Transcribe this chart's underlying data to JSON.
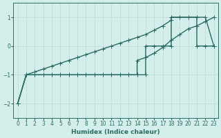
{
  "title": "",
  "xlabel": "Humidex (Indice chaleur)",
  "ylabel": "",
  "bg_color": "#d4eeeb",
  "grid_color": "#c0ddd9",
  "line_color": "#2a6b60",
  "xlim": [
    -0.5,
    23.5
  ],
  "ylim": [
    -2.5,
    1.5
  ],
  "yticks": [
    -2,
    -1,
    0,
    1
  ],
  "xticks": [
    0,
    1,
    2,
    3,
    4,
    5,
    6,
    7,
    8,
    9,
    10,
    11,
    12,
    13,
    14,
    15,
    16,
    17,
    18,
    19,
    20,
    21,
    22,
    23
  ],
  "line1_x": [
    0,
    1,
    2,
    3,
    4,
    5,
    6,
    7,
    8,
    9,
    10,
    11,
    12,
    13,
    14,
    15,
    16,
    17,
    18,
    18,
    19,
    20,
    21,
    21,
    22,
    23
  ],
  "line1_y": [
    -2,
    -1,
    -0.9,
    -0.8,
    -0.7,
    -0.6,
    -0.5,
    -0.4,
    -0.3,
    -0.2,
    -0.1,
    0.0,
    0.1,
    0.2,
    0.3,
    0.4,
    0.55,
    0.7,
    0.9,
    1.0,
    1.0,
    1.0,
    1.0,
    0.0,
    0.0,
    0.0
  ],
  "line2_x": [
    0,
    1,
    2,
    3,
    4,
    5,
    6,
    7,
    8,
    9,
    10,
    11,
    12,
    13,
    14,
    15,
    15,
    16,
    17,
    18,
    18,
    19,
    20,
    21,
    22,
    23
  ],
  "line2_y": [
    -2,
    -1,
    -1,
    -1,
    -1,
    -1,
    -1,
    -1,
    -1,
    -1,
    -1,
    -1,
    -1,
    -1,
    -1,
    -1,
    0,
    0,
    0,
    0,
    1,
    1,
    1,
    1,
    1,
    0
  ],
  "line3_x": [
    0,
    1,
    2,
    3,
    4,
    5,
    6,
    7,
    8,
    9,
    10,
    11,
    12,
    13,
    14,
    14,
    15,
    16,
    17,
    18,
    19,
    20,
    21,
    22,
    23
  ],
  "line3_y": [
    -2,
    -1,
    -1,
    -1,
    -1,
    -1,
    -1,
    -1,
    -1,
    -1,
    -1,
    -1,
    -1,
    -1,
    -1,
    -0.5,
    -0.4,
    -0.25,
    -0.05,
    0.2,
    0.4,
    0.6,
    0.7,
    0.85,
    1.0
  ],
  "marker": "+",
  "markersize": 4,
  "linewidth": 1.0
}
